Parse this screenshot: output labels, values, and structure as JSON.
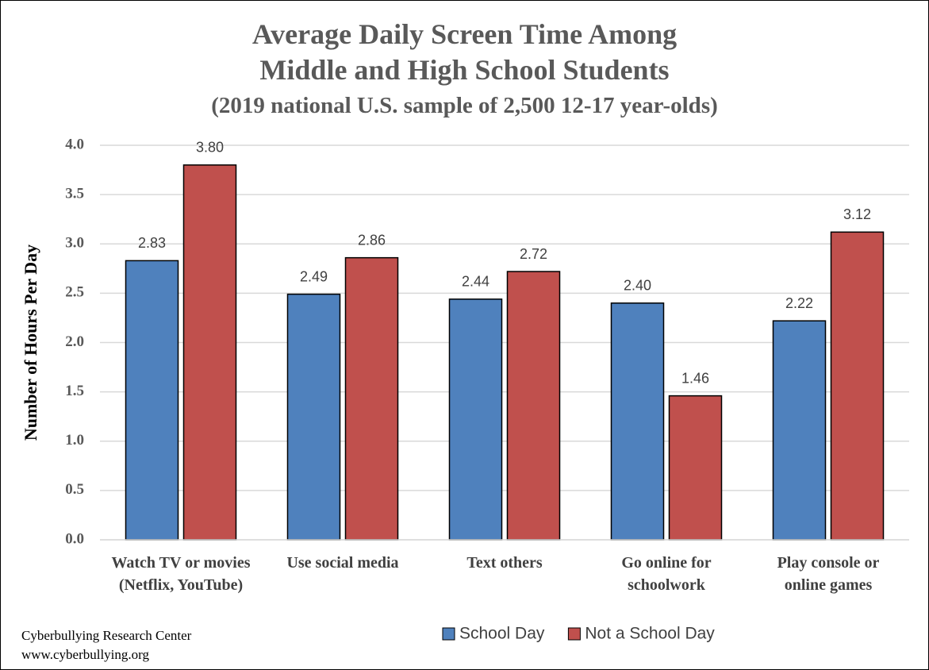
{
  "chart_data": {
    "type": "bar",
    "title": [
      "Average Daily Screen Time Among",
      "Middle and High School Students"
    ],
    "subtitle": "(2019 national U.S. sample of 2,500 12-17 year-olds)",
    "y_label": "Number of Hours Per Day",
    "categories": [
      "Watch TV or movies (Netflix, YouTube)",
      "Use social media",
      "Text others",
      "Go online for schoolwork",
      "Play console or online games"
    ],
    "series": [
      {
        "name": "School Day",
        "color": "#4f81bd",
        "values": [
          2.83,
          2.49,
          2.44,
          2.4,
          2.22
        ],
        "value_labels": [
          "2.83",
          "2.49",
          "2.44",
          "2.40",
          "2.22"
        ]
      },
      {
        "name": "Not a School Day",
        "color": "#c0504d",
        "values": [
          3.8,
          2.86,
          2.72,
          1.46,
          3.12
        ],
        "value_labels": [
          "3.80",
          "2.86",
          "2.72",
          "1.46",
          "3.12"
        ]
      }
    ],
    "ylim": [
      0,
      4
    ],
    "yticks": [
      {
        "value": 0,
        "label": "0.0"
      },
      0.5,
      {
        "value": 1,
        "label": "1.0"
      },
      1.5,
      {
        "value": 2,
        "label": "2.0"
      },
      2.5,
      {
        "value": 3,
        "label": "3.0"
      },
      3.5,
      {
        "value": 4,
        "label": "4.0"
      }
    ],
    "grid": true,
    "legend": "bottom",
    "source": [
      "Cyberbullying Research Center",
      "www.cyberbullying.org"
    ]
  }
}
